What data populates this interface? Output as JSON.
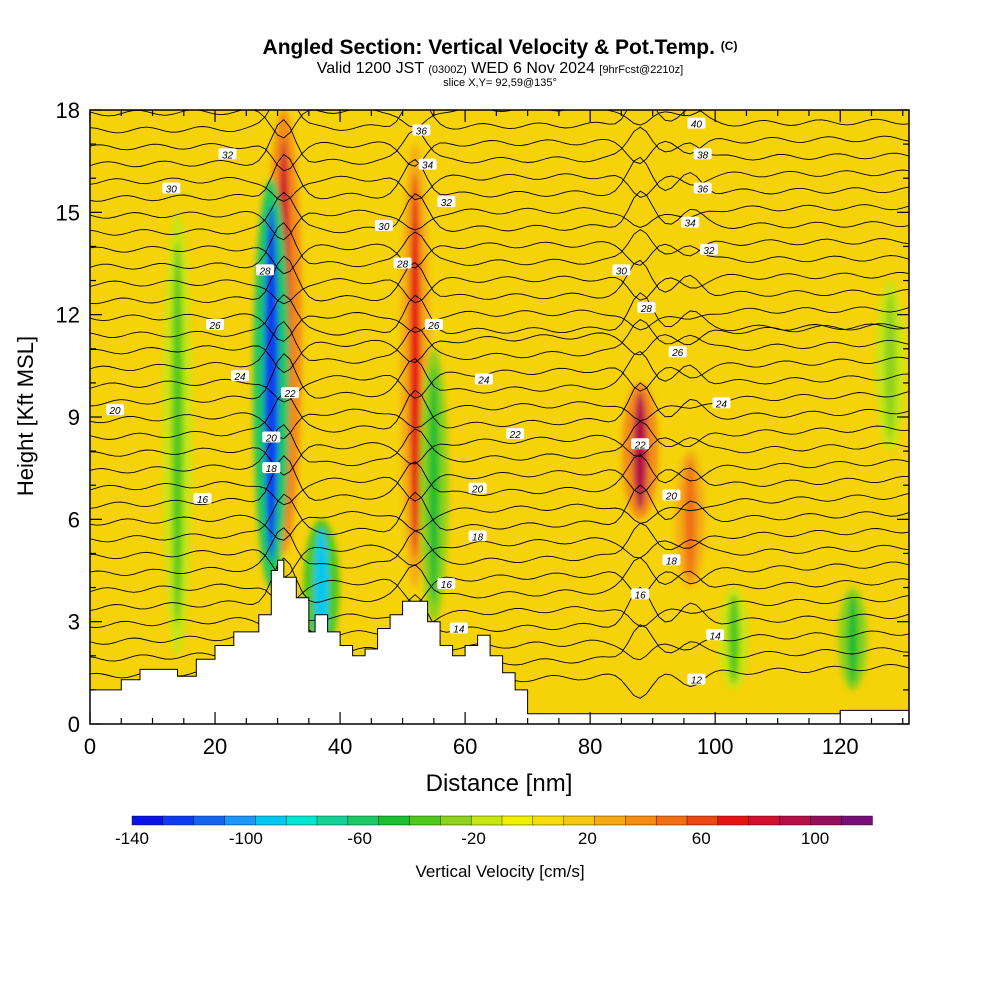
{
  "header": {
    "title": "Angled Section: Vertical Velocity & Pot.Temp.",
    "title_suffix": "(C)",
    "valid_main": "Valid 1200 JST",
    "valid_utc": "(0300Z)",
    "valid_date": "WED 6 Nov 2024",
    "forecast": "[9hrFcst@2210z]",
    "slice": "slice X,Y= 92,59@135°"
  },
  "chart_data": {
    "type": "heatmap",
    "xlabel": "Distance [nm]",
    "ylabel": "Height [Kft MSL]",
    "xlim": [
      0,
      131
    ],
    "ylim": [
      0,
      18
    ],
    "xticks": [
      0,
      20,
      40,
      60,
      80,
      100,
      120
    ],
    "yticks": [
      0,
      3,
      6,
      9,
      12,
      15,
      18
    ],
    "background_value_range": "near 0 to +20 cm/s (yellow-orange)",
    "velocity_features": [
      {
        "x": 31,
        "y_bottom": 5,
        "y_top": 18,
        "peak_value": 80,
        "sign": "updraft"
      },
      {
        "x": 29,
        "y_bottom": 4,
        "y_top": 16,
        "peak_value": -120,
        "sign": "downdraft"
      },
      {
        "x": 37,
        "y_bottom": 2,
        "y_top": 6,
        "peak_value": -90,
        "sign": "downdraft"
      },
      {
        "x": 52,
        "y_bottom": 4,
        "y_top": 17,
        "peak_value": 70,
        "sign": "updraft"
      },
      {
        "x": 55,
        "y_bottom": 3,
        "y_top": 11,
        "peak_value": -50,
        "sign": "downdraft"
      },
      {
        "x": 88,
        "y_bottom": 6,
        "y_top": 10,
        "peak_value": 90,
        "sign": "updraft"
      },
      {
        "x": 96,
        "y_bottom": 4,
        "y_top": 8,
        "peak_value": 50,
        "sign": "updraft"
      },
      {
        "x": 14,
        "y_bottom": 2,
        "y_top": 15,
        "peak_value": -40,
        "sign": "downdraft"
      },
      {
        "x": 103,
        "y_bottom": 1,
        "y_top": 4,
        "peak_value": -40,
        "sign": "downdraft"
      },
      {
        "x": 122,
        "y_bottom": 1,
        "y_top": 4,
        "peak_value": -50,
        "sign": "downdraft"
      },
      {
        "x": 128,
        "y_bottom": 8,
        "y_top": 13,
        "peak_value": -30,
        "sign": "downdraft"
      }
    ],
    "terrain": {
      "x": [
        0,
        5,
        8,
        11,
        14,
        17,
        20,
        23,
        27,
        29,
        30,
        31,
        33,
        35,
        36,
        38,
        40,
        42,
        44,
        46,
        48,
        50,
        52,
        54,
        56,
        58,
        60,
        62,
        64,
        66,
        68,
        70,
        80,
        100,
        110,
        118,
        120,
        131
      ],
      "height": [
        1.0,
        1.3,
        1.6,
        1.6,
        1.4,
        1.9,
        2.3,
        2.7,
        3.2,
        4.5,
        4.8,
        4.3,
        3.7,
        2.7,
        3.2,
        2.7,
        2.3,
        2.0,
        2.2,
        2.8,
        3.2,
        3.6,
        3.6,
        3.0,
        2.3,
        2.0,
        2.3,
        2.6,
        2.0,
        1.5,
        1.0,
        0.3,
        0.3,
        0.3,
        0.3,
        0.3,
        0.4,
        0.3
      ]
    },
    "theta_labels": [
      {
        "label": "40",
        "x": 97,
        "y": 17.6
      },
      {
        "label": "36",
        "x": 53,
        "y": 17.4
      },
      {
        "label": "38",
        "x": 98,
        "y": 16.7
      },
      {
        "label": "32",
        "x": 22,
        "y": 16.7
      },
      {
        "label": "34",
        "x": 54,
        "y": 16.4
      },
      {
        "label": "36",
        "x": 98,
        "y": 15.7
      },
      {
        "label": "30",
        "x": 13,
        "y": 15.7
      },
      {
        "label": "32",
        "x": 57,
        "y": 15.3
      },
      {
        "label": "34",
        "x": 96,
        "y": 14.7
      },
      {
        "label": "30",
        "x": 47,
        "y": 14.6
      },
      {
        "label": "32",
        "x": 99,
        "y": 13.9
      },
      {
        "label": "28",
        "x": 28,
        "y": 13.3
      },
      {
        "label": "28",
        "x": 50,
        "y": 13.5
      },
      {
        "label": "30",
        "x": 85,
        "y": 13.3
      },
      {
        "label": "28",
        "x": 89,
        "y": 12.2
      },
      {
        "label": "26",
        "x": 20,
        "y": 11.7
      },
      {
        "label": "26",
        "x": 55,
        "y": 11.7
      },
      {
        "label": "26",
        "x": 94,
        "y": 10.9
      },
      {
        "label": "24",
        "x": 24,
        "y": 10.2
      },
      {
        "label": "24",
        "x": 63,
        "y": 10.1
      },
      {
        "label": "22",
        "x": 32,
        "y": 9.7
      },
      {
        "label": "24",
        "x": 101,
        "y": 9.4
      },
      {
        "label": "20",
        "x": 4,
        "y": 9.2
      },
      {
        "label": "22",
        "x": 68,
        "y": 8.5
      },
      {
        "label": "20",
        "x": 29,
        "y": 8.4
      },
      {
        "label": "22",
        "x": 88,
        "y": 8.2
      },
      {
        "label": "18",
        "x": 29,
        "y": 7.5
      },
      {
        "label": "20",
        "x": 62,
        "y": 6.9
      },
      {
        "label": "20",
        "x": 93,
        "y": 6.7
      },
      {
        "label": "16",
        "x": 18,
        "y": 6.6
      },
      {
        "label": "18",
        "x": 62,
        "y": 5.5
      },
      {
        "label": "18",
        "x": 93,
        "y": 4.8
      },
      {
        "label": "16",
        "x": 57,
        "y": 4.1
      },
      {
        "label": "16",
        "x": 88,
        "y": 3.8
      },
      {
        "label": "14",
        "x": 59,
        "y": 2.8
      },
      {
        "label": "14",
        "x": 100,
        "y": 2.6
      },
      {
        "label": "12",
        "x": 97,
        "y": 1.3
      }
    ],
    "colorbar": {
      "label": "Vertical Velocity [cm/s]",
      "tick_labels": [
        "-140",
        "-100",
        "-60",
        "-20",
        "20",
        "60",
        "100"
      ],
      "tick_values": [
        -140,
        -100,
        -60,
        -20,
        20,
        60,
        100
      ],
      "range": [
        -140,
        120
      ],
      "colors": [
        "#0a14e6",
        "#0f3cf0",
        "#1464f0",
        "#1e96f5",
        "#00c8f0",
        "#00e6d2",
        "#14d296",
        "#1ec864",
        "#1ebe32",
        "#50c81e",
        "#8cd21e",
        "#c8e614",
        "#f0f000",
        "#f5dc0a",
        "#f5c814",
        "#f5aa14",
        "#f58c14",
        "#f06e14",
        "#eb4614",
        "#e61414",
        "#d20f2d",
        "#b40f46",
        "#960f5a",
        "#780f78"
      ]
    }
  }
}
